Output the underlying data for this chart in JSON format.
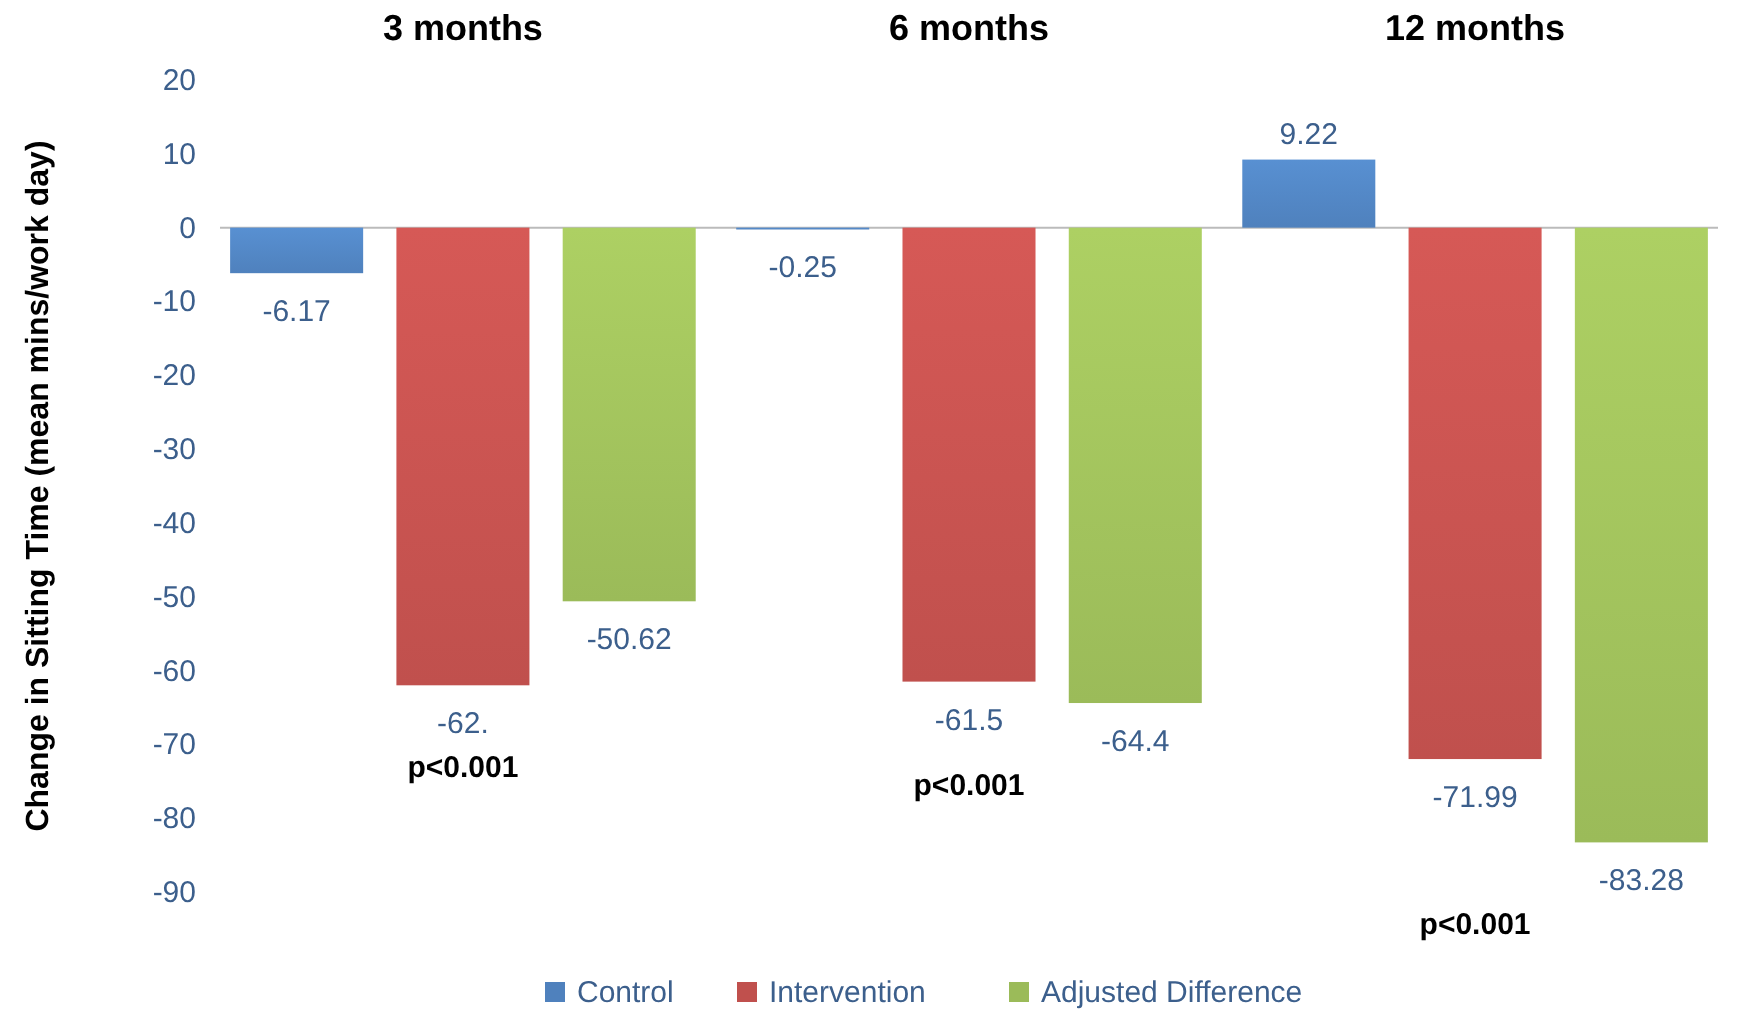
{
  "chart_data": {
    "type": "bar",
    "ylabel": "Change in Sitting Time (mean mins/work day)",
    "categories": [
      "3 months",
      "6 months",
      "12 months"
    ],
    "series": [
      {
        "name": "Control",
        "color": "#4f81bd",
        "values": [
          -6.17,
          -0.25,
          9.22
        ],
        "value_labels": [
          "-6.17",
          "-0.25",
          "9.22"
        ]
      },
      {
        "name": "Intervention",
        "color": "#c0504d",
        "values": [
          -62,
          -61.5,
          -71.99
        ],
        "value_labels": [
          "-62.",
          "-61.5",
          "-71.99"
        ]
      },
      {
        "name": "Adjusted Difference",
        "color": "#9bbb59",
        "values": [
          -50.62,
          -64.4,
          -83.28
        ],
        "value_labels": [
          "-50.62",
          "-64.4",
          "-83.28"
        ]
      }
    ],
    "ylim": [
      -90,
      20
    ],
    "yticks": [
      -90,
      -80,
      -70,
      -60,
      -50,
      -40,
      -30,
      -20,
      -10,
      0,
      10,
      20
    ],
    "ref_lines": [
      {
        "axis": "y",
        "value": 0,
        "color": "#bbbbbb"
      }
    ],
    "legend": "bottom",
    "annotations": [
      "p<0.001",
      "p<0.001",
      "p<0.001"
    ]
  }
}
